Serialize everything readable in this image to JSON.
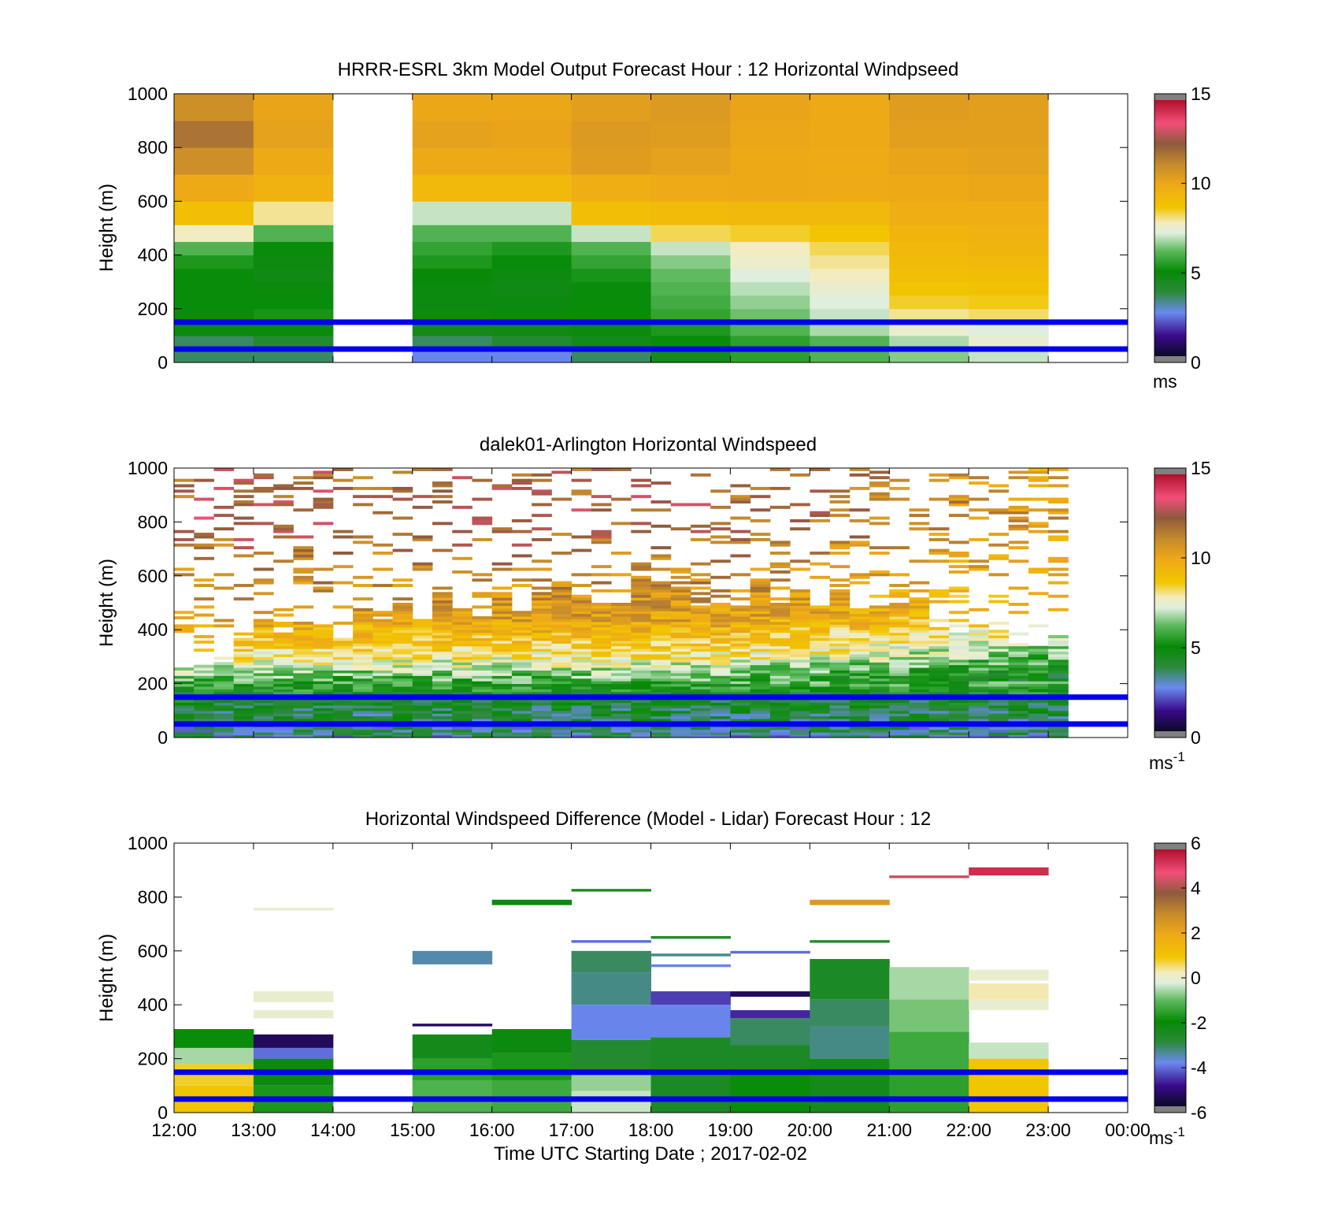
{
  "figure": {
    "xlabel": "Time UTC  Starting Date ; 2017-02-02",
    "x_ticks": [
      "12:00",
      "13:00",
      "14:00",
      "15:00",
      "16:00",
      "17:00",
      "18:00",
      "19:00",
      "20:00",
      "21:00",
      "22:00",
      "23:00",
      "00:00"
    ]
  },
  "chart_data": [
    {
      "type": "heatmap",
      "title": "HRRR-ESRL 3km Model Output   Forecast Hour : 12 Horizontal Windpseed",
      "ylabel": "Height (m)",
      "ylim": [
        0,
        1000
      ],
      "y_ticks": [
        "0",
        "200",
        "400",
        "600",
        "800",
        "1000"
      ],
      "x": [
        "12:00",
        "13:00",
        "14:00",
        "15:00",
        "16:00",
        "17:00",
        "18:00",
        "19:00",
        "20:00",
        "21:00",
        "22:00"
      ],
      "heights": [
        25,
        75,
        125,
        175,
        225,
        275,
        325,
        375,
        425,
        475,
        550,
        650,
        750,
        850,
        950
      ],
      "z": [
        [
          3.5,
          3.5,
          null,
          2.5,
          2.5,
          3.5,
          4.5,
          5.5,
          6.0,
          6.5,
          7.0
        ],
        [
          3.5,
          4.0,
          null,
          3.5,
          4.0,
          4.5,
          5.0,
          5.5,
          6.0,
          6.8,
          7.5
        ],
        [
          4.8,
          5.0,
          null,
          4.5,
          4.6,
          4.8,
          5.3,
          6.0,
          6.8,
          7.5,
          7.2
        ],
        [
          4.8,
          5.2,
          null,
          4.7,
          4.8,
          5.0,
          5.6,
          6.3,
          7.0,
          8.0,
          8.2
        ],
        [
          5.0,
          5.0,
          null,
          4.8,
          4.8,
          5.0,
          5.8,
          6.6,
          7.2,
          8.5,
          8.6
        ],
        [
          5.0,
          4.8,
          null,
          4.8,
          4.6,
          5.0,
          6.0,
          6.9,
          7.5,
          8.8,
          8.9
        ],
        [
          5.0,
          4.6,
          null,
          4.9,
          4.7,
          5.2,
          6.2,
          7.2,
          7.8,
          9.0,
          9.1
        ],
        [
          5.3,
          4.7,
          null,
          5.3,
          5.0,
          5.6,
          6.5,
          7.6,
          8.0,
          9.2,
          9.3
        ],
        [
          6.0,
          5.0,
          null,
          5.6,
          5.3,
          6.0,
          7.0,
          7.8,
          8.3,
          9.3,
          9.5
        ],
        [
          7.8,
          6.0,
          null,
          6.0,
          6.0,
          7.0,
          8.3,
          8.5,
          8.8,
          9.5,
          9.6
        ],
        [
          9.0,
          8.0,
          null,
          7.0,
          7.0,
          9.0,
          9.2,
          9.3,
          9.3,
          9.8,
          9.8
        ],
        [
          10.0,
          9.6,
          null,
          9.3,
          9.3,
          9.8,
          9.9,
          10.0,
          9.9,
          10.0,
          10.1
        ],
        [
          11.0,
          10.0,
          null,
          10.0,
          10.0,
          10.5,
          10.3,
          10.0,
          9.9,
          10.2,
          10.3
        ],
        [
          11.8,
          10.3,
          null,
          10.3,
          10.2,
          10.6,
          10.5,
          10.1,
          10.0,
          10.4,
          10.4
        ],
        [
          11.0,
          10.2,
          null,
          10.1,
          10.1,
          10.4,
          10.6,
          10.2,
          10.0,
          10.5,
          10.4
        ]
      ],
      "reference_lines_m": [
        50,
        150
      ],
      "reference_line_color": "#0000ee",
      "colorbar": {
        "range": [
          0,
          15
        ],
        "ticks": [
          "0",
          "5",
          "10",
          "15"
        ],
        "label": "ms"
      }
    },
    {
      "type": "heatmap",
      "title": "dalek01-Arlington  Horizontal Windspeed",
      "ylabel": "Height (m)",
      "ylim": [
        0,
        1000
      ],
      "y_ticks": [
        "0",
        "200",
        "400",
        "600",
        "800",
        "1000"
      ],
      "x_range": [
        "12:00",
        "00:00"
      ],
      "time_bins": 48,
      "value_profile": [
        {
          "h": 0,
          "v": 3.0
        },
        {
          "h": 150,
          "v": 4.5
        },
        {
          "h": 300,
          "v": 8.0
        },
        {
          "h": 450,
          "v": 10.5
        },
        {
          "h": 650,
          "v": 11.5
        },
        {
          "h": 800,
          "v": 12.5
        },
        {
          "h": 1000,
          "v": 12.0
        }
      ],
      "reference_lines_m": [
        50,
        150
      ],
      "reference_line_color": "#0000ee",
      "colorbar": {
        "range": [
          0,
          15
        ],
        "ticks": [
          "0",
          "5",
          "10",
          "15"
        ],
        "label": "ms",
        "label_sup": "-1"
      }
    },
    {
      "type": "heatmap",
      "title": "Horizontal Windspeed Difference (Model - Lidar) Forecast Hour : 12",
      "ylabel": "Height (m)",
      "ylim": [
        0,
        1000
      ],
      "y_ticks": [
        "0",
        "200",
        "400",
        "600",
        "800",
        "1000"
      ],
      "x": [
        "12:00",
        "13:00",
        "14:00",
        "15:00",
        "16:00",
        "17:00",
        "18:00",
        "19:00",
        "20:00",
        "21:00",
        "22:00"
      ],
      "columns": [
        {
          "t": 0,
          "segments": [
            [
              0,
              100,
              1.0
            ],
            [
              100,
              180,
              0.8
            ],
            [
              180,
              240,
              -0.6
            ],
            [
              240,
              310,
              -2.0
            ]
          ]
        },
        {
          "t": 1,
          "segments": [
            [
              0,
              100,
              -1.8
            ],
            [
              100,
              200,
              -2.2
            ],
            [
              200,
              240,
              -4.2
            ],
            [
              240,
              290,
              -5.5
            ],
            [
              350,
              380,
              0.0
            ],
            [
              410,
              450,
              0.0
            ],
            [
              750,
              760,
              0.0
            ]
          ]
        },
        {
          "t": 3,
          "segments": [
            [
              0,
              120,
              -1.2
            ],
            [
              120,
              200,
              -1.6
            ],
            [
              200,
              290,
              -2.4
            ],
            [
              320,
              330,
              -5.5
            ],
            [
              550,
              600,
              -3.6
            ]
          ]
        },
        {
          "t": 4,
          "segments": [
            [
              0,
              120,
              -1.4
            ],
            [
              120,
              220,
              -1.8
            ],
            [
              220,
              310,
              -2.2
            ],
            [
              770,
              790,
              -2.2
            ]
          ]
        },
        {
          "t": 5,
          "segments": [
            [
              0,
              80,
              -0.4
            ],
            [
              80,
              150,
              -0.7
            ],
            [
              150,
              270,
              -2.8
            ],
            [
              270,
              400,
              -4.0
            ],
            [
              400,
              520,
              -3.4
            ],
            [
              520,
              600,
              -3.2
            ],
            [
              630,
              640,
              -4.2
            ],
            [
              820,
              830,
              -2.6
            ]
          ]
        },
        {
          "t": 6,
          "segments": [
            [
              0,
              150,
              -2.6
            ],
            [
              150,
              280,
              -2.6
            ],
            [
              280,
              400,
              -4.0
            ],
            [
              400,
              450,
              -4.6
            ],
            [
              540,
              550,
              -4.0
            ],
            [
              580,
              590,
              -3.4
            ],
            [
              645,
              655,
              -2.8
            ]
          ]
        },
        {
          "t": 7,
          "segments": [
            [
              0,
              150,
              -2.0
            ],
            [
              150,
              250,
              -2.6
            ],
            [
              250,
              350,
              -3.2
            ],
            [
              350,
              380,
              -4.8
            ],
            [
              430,
              450,
              -5.5
            ],
            [
              590,
              600,
              -4.2
            ]
          ]
        },
        {
          "t": 8,
          "segments": [
            [
              0,
              200,
              -2.4
            ],
            [
              200,
              320,
              -3.4
            ],
            [
              320,
              420,
              -3.2
            ],
            [
              420,
              570,
              -2.6
            ],
            [
              630,
              640,
              -2.8
            ],
            [
              770,
              790,
              2.5
            ]
          ]
        },
        {
          "t": 9,
          "segments": [
            [
              0,
              150,
              -1.6
            ],
            [
              150,
              300,
              -1.4
            ],
            [
              300,
              420,
              -0.9
            ],
            [
              420,
              540,
              -0.6
            ],
            [
              870,
              880,
              4.5
            ]
          ]
        },
        {
          "t": 10,
          "segments": [
            [
              0,
              200,
              1.0
            ],
            [
              200,
              260,
              -0.4
            ],
            [
              380,
              420,
              0.0
            ],
            [
              420,
              480,
              0.3
            ],
            [
              490,
              530,
              0.0
            ],
            [
              880,
              910,
              5.5
            ]
          ]
        }
      ],
      "reference_lines_m": [
        50,
        150
      ],
      "reference_line_color": "#0000ee",
      "colorbar": {
        "range": [
          -6,
          6
        ],
        "ticks": [
          "-6",
          "-4",
          "-2",
          "0",
          "2",
          "4",
          "6"
        ],
        "label": "ms",
        "label_sup": "-1"
      }
    }
  ]
}
